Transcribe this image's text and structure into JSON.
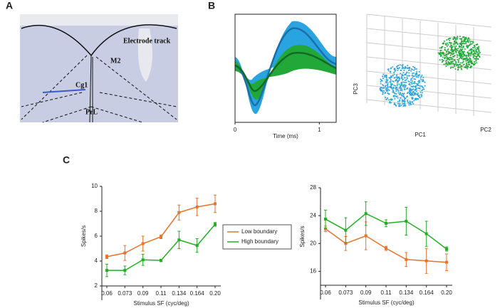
{
  "panel_labels": [
    "A",
    "B",
    "C"
  ],
  "histology": {
    "labels": [
      "Electrode track",
      "M2",
      "Cg1",
      "PrL"
    ]
  },
  "chart_data": [
    {
      "type": "waveform",
      "x_label": "Time (ms)",
      "xlim": [
        0,
        1.2
      ],
      "xticks": [
        0,
        1
      ]
    },
    {
      "type": "scatter3d",
      "x_label": "PC1",
      "y_label": "PC3",
      "z_label": "PC2",
      "colors": [
        "#2aa4e0",
        "#22a838"
      ]
    },
    {
      "type": "line",
      "y_label": "Spikes/s",
      "x_label": "Stimulus SF (cyc/deg)",
      "categories": [
        "0.06",
        "0.073",
        "0.09",
        "0.11",
        "0.134",
        "0.164",
        "0.20"
      ],
      "ylim": [
        2,
        10
      ],
      "yticks": [
        2,
        4,
        6,
        8,
        10
      ],
      "legend": "right",
      "series": [
        {
          "name": "Low boundary",
          "color": "#e8732a",
          "values": [
            4.35,
            4.65,
            5.4,
            5.95,
            7.9,
            8.35,
            8.6
          ],
          "errors": [
            0.15,
            0.6,
            0.6,
            0.15,
            0.6,
            0.7,
            0.7
          ]
        },
        {
          "name": "High boundary",
          "color": "#22b022",
          "values": [
            3.25,
            3.25,
            4.1,
            4.05,
            5.7,
            5.25,
            6.95
          ],
          "errors": [
            0.5,
            0.35,
            0.45,
            0.1,
            0.7,
            0.55,
            0.15
          ]
        }
      ]
    },
    {
      "type": "line",
      "y_label": "Spikes/s",
      "x_label": "Stimulus SF (cyc/deg)",
      "categories": [
        "0.06",
        "0.073",
        "0.09",
        "0.11",
        "0.134",
        "0.164",
        "0.20"
      ],
      "ylim": [
        14,
        28
      ],
      "yticks": [
        16,
        20,
        24,
        28
      ],
      "series": [
        {
          "name": "Low boundary",
          "color": "#e8732a",
          "values": [
            22.1,
            20.0,
            21.1,
            19.3,
            17.7,
            17.5,
            17.3
          ],
          "errors": [
            0.4,
            1.0,
            2.0,
            0.3,
            1.0,
            1.8,
            1.2
          ]
        },
        {
          "name": "High boundary",
          "color": "#22b022",
          "values": [
            23.5,
            21.9,
            24.3,
            22.9,
            23.2,
            21.4,
            19.2
          ],
          "errors": [
            1.3,
            1.8,
            1.7,
            0.5,
            2.0,
            1.8,
            0.3
          ]
        }
      ]
    }
  ]
}
